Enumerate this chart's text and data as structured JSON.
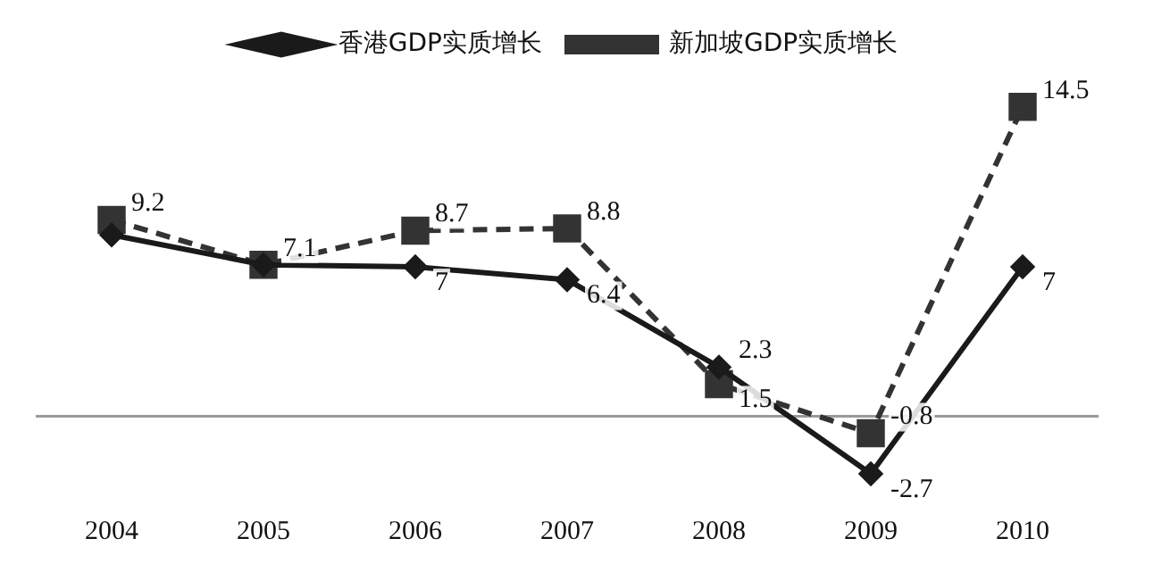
{
  "chart_data": {
    "type": "line",
    "categories": [
      "2004",
      "2005",
      "2006",
      "2007",
      "2008",
      "2009",
      "2010"
    ],
    "series": [
      {
        "name": "香港GDP实质增长",
        "color": "#1a1a1a",
        "marker": "diamond",
        "line_style": "solid",
        "values": [
          8.5,
          7.1,
          7,
          6.4,
          2.3,
          -2.7,
          7
        ],
        "value_labels": [
          null,
          "7.1",
          "7",
          "6.4",
          "2.3",
          "-2.7",
          "7"
        ]
      },
      {
        "name": "新加坡GDP实质增长",
        "color": "#333333",
        "marker": "square",
        "line_style": "dashed",
        "values": [
          9.2,
          7.1,
          8.7,
          8.8,
          1.5,
          -0.8,
          14.5
        ],
        "value_labels": [
          "9.2",
          null,
          "8.7",
          "8.8",
          "1.5",
          "-0.8",
          "14.5"
        ]
      }
    ],
    "tick_labels": "x",
    "grid": false,
    "legend": "top"
  }
}
